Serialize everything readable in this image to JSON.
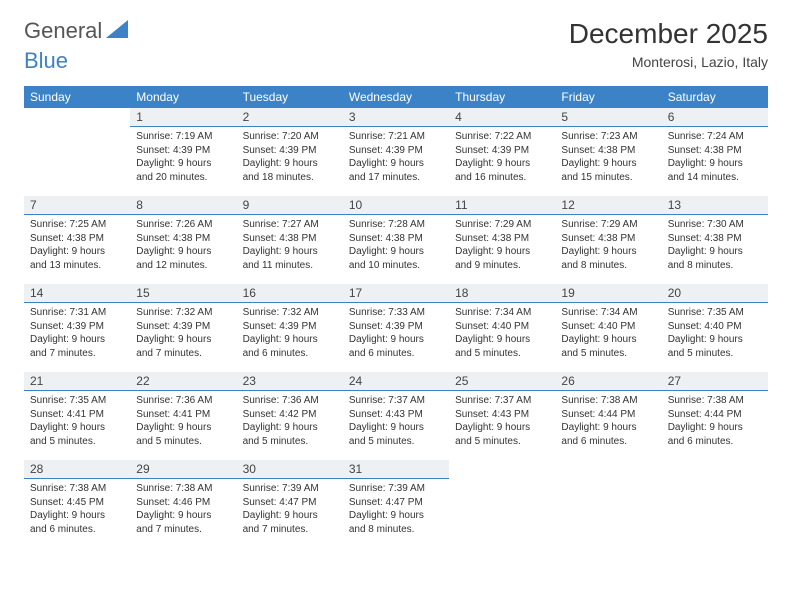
{
  "brand": {
    "part1": "General",
    "part2": "Blue"
  },
  "title": "December 2025",
  "subtitle": "Monterosi, Lazio, Italy",
  "colors": {
    "header_bg": "#3b82c7",
    "header_text": "#ffffff",
    "daynum_bg": "#eef1f4",
    "rule": "#3b82c7",
    "body_text": "#333333"
  },
  "weekdays": [
    "Sunday",
    "Monday",
    "Tuesday",
    "Wednesday",
    "Thursday",
    "Friday",
    "Saturday"
  ],
  "first_weekday_index": 1,
  "days": [
    {
      "n": 1,
      "sunrise": "7:19 AM",
      "sunset": "4:39 PM",
      "daylight": "9 hours and 20 minutes."
    },
    {
      "n": 2,
      "sunrise": "7:20 AM",
      "sunset": "4:39 PM",
      "daylight": "9 hours and 18 minutes."
    },
    {
      "n": 3,
      "sunrise": "7:21 AM",
      "sunset": "4:39 PM",
      "daylight": "9 hours and 17 minutes."
    },
    {
      "n": 4,
      "sunrise": "7:22 AM",
      "sunset": "4:39 PM",
      "daylight": "9 hours and 16 minutes."
    },
    {
      "n": 5,
      "sunrise": "7:23 AM",
      "sunset": "4:38 PM",
      "daylight": "9 hours and 15 minutes."
    },
    {
      "n": 6,
      "sunrise": "7:24 AM",
      "sunset": "4:38 PM",
      "daylight": "9 hours and 14 minutes."
    },
    {
      "n": 7,
      "sunrise": "7:25 AM",
      "sunset": "4:38 PM",
      "daylight": "9 hours and 13 minutes."
    },
    {
      "n": 8,
      "sunrise": "7:26 AM",
      "sunset": "4:38 PM",
      "daylight": "9 hours and 12 minutes."
    },
    {
      "n": 9,
      "sunrise": "7:27 AM",
      "sunset": "4:38 PM",
      "daylight": "9 hours and 11 minutes."
    },
    {
      "n": 10,
      "sunrise": "7:28 AM",
      "sunset": "4:38 PM",
      "daylight": "9 hours and 10 minutes."
    },
    {
      "n": 11,
      "sunrise": "7:29 AM",
      "sunset": "4:38 PM",
      "daylight": "9 hours and 9 minutes."
    },
    {
      "n": 12,
      "sunrise": "7:29 AM",
      "sunset": "4:38 PM",
      "daylight": "9 hours and 8 minutes."
    },
    {
      "n": 13,
      "sunrise": "7:30 AM",
      "sunset": "4:38 PM",
      "daylight": "9 hours and 8 minutes."
    },
    {
      "n": 14,
      "sunrise": "7:31 AM",
      "sunset": "4:39 PM",
      "daylight": "9 hours and 7 minutes."
    },
    {
      "n": 15,
      "sunrise": "7:32 AM",
      "sunset": "4:39 PM",
      "daylight": "9 hours and 7 minutes."
    },
    {
      "n": 16,
      "sunrise": "7:32 AM",
      "sunset": "4:39 PM",
      "daylight": "9 hours and 6 minutes."
    },
    {
      "n": 17,
      "sunrise": "7:33 AM",
      "sunset": "4:39 PM",
      "daylight": "9 hours and 6 minutes."
    },
    {
      "n": 18,
      "sunrise": "7:34 AM",
      "sunset": "4:40 PM",
      "daylight": "9 hours and 5 minutes."
    },
    {
      "n": 19,
      "sunrise": "7:34 AM",
      "sunset": "4:40 PM",
      "daylight": "9 hours and 5 minutes."
    },
    {
      "n": 20,
      "sunrise": "7:35 AM",
      "sunset": "4:40 PM",
      "daylight": "9 hours and 5 minutes."
    },
    {
      "n": 21,
      "sunrise": "7:35 AM",
      "sunset": "4:41 PM",
      "daylight": "9 hours and 5 minutes."
    },
    {
      "n": 22,
      "sunrise": "7:36 AM",
      "sunset": "4:41 PM",
      "daylight": "9 hours and 5 minutes."
    },
    {
      "n": 23,
      "sunrise": "7:36 AM",
      "sunset": "4:42 PM",
      "daylight": "9 hours and 5 minutes."
    },
    {
      "n": 24,
      "sunrise": "7:37 AM",
      "sunset": "4:43 PM",
      "daylight": "9 hours and 5 minutes."
    },
    {
      "n": 25,
      "sunrise": "7:37 AM",
      "sunset": "4:43 PM",
      "daylight": "9 hours and 5 minutes."
    },
    {
      "n": 26,
      "sunrise": "7:38 AM",
      "sunset": "4:44 PM",
      "daylight": "9 hours and 6 minutes."
    },
    {
      "n": 27,
      "sunrise": "7:38 AM",
      "sunset": "4:44 PM",
      "daylight": "9 hours and 6 minutes."
    },
    {
      "n": 28,
      "sunrise": "7:38 AM",
      "sunset": "4:45 PM",
      "daylight": "9 hours and 6 minutes."
    },
    {
      "n": 29,
      "sunrise": "7:38 AM",
      "sunset": "4:46 PM",
      "daylight": "9 hours and 7 minutes."
    },
    {
      "n": 30,
      "sunrise": "7:39 AM",
      "sunset": "4:47 PM",
      "daylight": "9 hours and 7 minutes."
    },
    {
      "n": 31,
      "sunrise": "7:39 AM",
      "sunset": "4:47 PM",
      "daylight": "9 hours and 8 minutes."
    }
  ]
}
